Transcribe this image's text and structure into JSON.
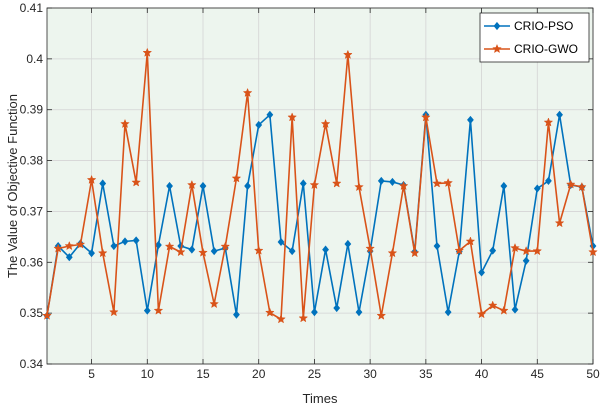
{
  "chart_data": {
    "type": "line",
    "title": "",
    "xlabel": "Times",
    "ylabel": "The Value of Objective Function",
    "xlim": [
      1,
      50
    ],
    "ylim": [
      0.34,
      0.41
    ],
    "xticks": [
      5,
      10,
      15,
      20,
      25,
      30,
      35,
      40,
      45,
      50
    ],
    "yticks": [
      0.34,
      0.35,
      0.36,
      0.37,
      0.38,
      0.39,
      0.4,
      0.41
    ],
    "grid": true,
    "legend_position": "top-right",
    "plot_background": "#edf5ee",
    "x": [
      1,
      2,
      3,
      4,
      5,
      6,
      7,
      8,
      9,
      10,
      11,
      12,
      13,
      14,
      15,
      16,
      17,
      18,
      19,
      20,
      21,
      22,
      23,
      24,
      25,
      26,
      27,
      28,
      29,
      30,
      31,
      32,
      33,
      34,
      35,
      36,
      37,
      38,
      39,
      40,
      41,
      42,
      43,
      44,
      45,
      46,
      47,
      48,
      49,
      50
    ],
    "series": [
      {
        "name": "CRIO-PSO",
        "color": "#0072bd",
        "marker": "diamond",
        "values": [
          0.3495,
          0.3632,
          0.361,
          0.3637,
          0.3618,
          0.3755,
          0.3632,
          0.3641,
          0.3643,
          0.3505,
          0.3634,
          0.375,
          0.3632,
          0.3625,
          0.375,
          0.3622,
          0.3628,
          0.3497,
          0.375,
          0.387,
          0.389,
          0.364,
          0.3622,
          0.3755,
          0.3502,
          0.3625,
          0.351,
          0.3636,
          0.3502,
          0.3622,
          0.376,
          0.3758,
          0.3752,
          0.3621,
          0.389,
          0.3632,
          0.3502,
          0.3621,
          0.388,
          0.358,
          0.3623,
          0.375,
          0.3507,
          0.3603,
          0.3745,
          0.376,
          0.389,
          0.3752,
          0.3748,
          0.3632
        ]
      },
      {
        "name": "CRIO-GWO",
        "color": "#d95319",
        "marker": "star",
        "values": [
          0.3495,
          0.3627,
          0.3632,
          0.3635,
          0.3762,
          0.3618,
          0.3502,
          0.3872,
          0.3757,
          0.4012,
          0.3505,
          0.3631,
          0.362,
          0.3752,
          0.3619,
          0.3518,
          0.3631,
          0.3765,
          0.3933,
          0.3623,
          0.3501,
          0.3488,
          0.3885,
          0.349,
          0.3752,
          0.3872,
          0.3755,
          0.4008,
          0.3748,
          0.3627,
          0.3495,
          0.3618,
          0.375,
          0.3618,
          0.3885,
          0.3755,
          0.3756,
          0.3623,
          0.3641,
          0.3498,
          0.3515,
          0.3505,
          0.3628,
          0.3622,
          0.3622,
          0.3875,
          0.3677,
          0.3753,
          0.3748,
          0.362
        ]
      }
    ]
  }
}
